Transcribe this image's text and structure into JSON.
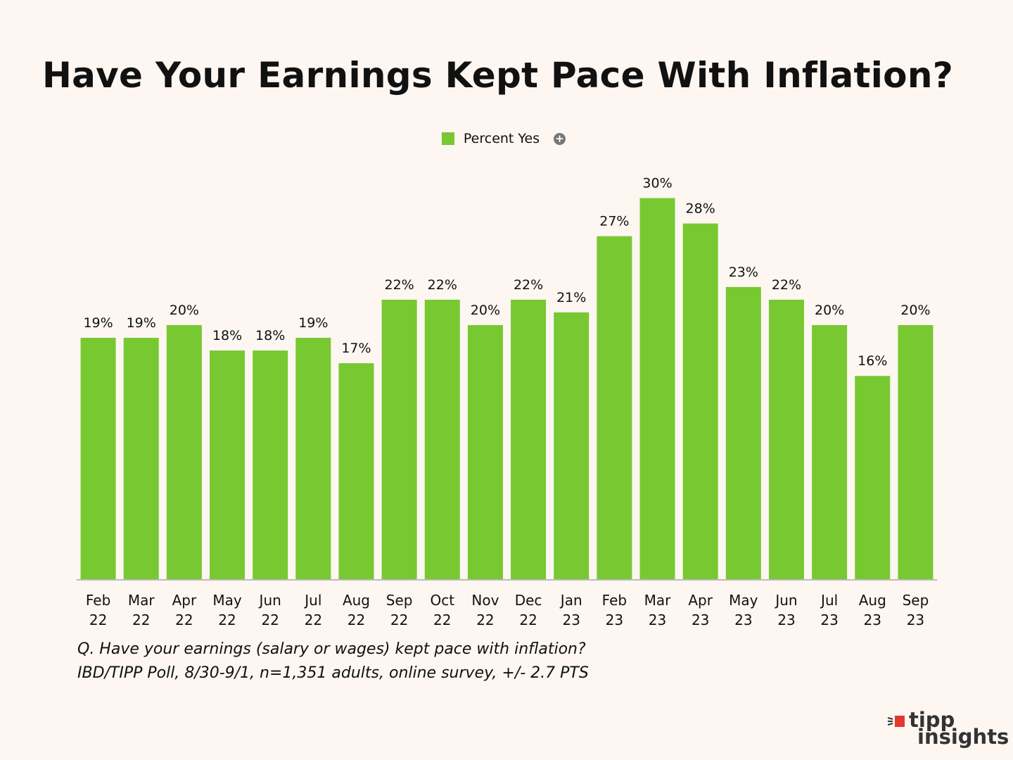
{
  "title": "Have Your Earnings Kept Pace With Inflation?",
  "legend": {
    "label": "Percent Yes",
    "icon": "plus-circle-icon"
  },
  "colors": {
    "bar": "#78c832",
    "axis": "#bbbbbb",
    "background": "#fdf6f1"
  },
  "chart_data": {
    "type": "bar",
    "title": "Have Your Earnings Kept Pace With Inflation?",
    "categories": [
      [
        "Feb",
        "22"
      ],
      [
        "Mar",
        "22"
      ],
      [
        "Apr",
        "22"
      ],
      [
        "May",
        "22"
      ],
      [
        "Jun",
        "22"
      ],
      [
        "Jul",
        "22"
      ],
      [
        "Aug",
        "22"
      ],
      [
        "Sep",
        "22"
      ],
      [
        "Oct",
        "22"
      ],
      [
        "Nov",
        "22"
      ],
      [
        "Dec",
        "22"
      ],
      [
        "Jan",
        "23"
      ],
      [
        "Feb",
        "23"
      ],
      [
        "Mar",
        "23"
      ],
      [
        "Apr",
        "23"
      ],
      [
        "May",
        "23"
      ],
      [
        "Jun",
        "23"
      ],
      [
        "Jul",
        "23"
      ],
      [
        "Aug",
        "23"
      ],
      [
        "Sep",
        "23"
      ]
    ],
    "series": [
      {
        "name": "Percent Yes",
        "values": [
          19,
          19,
          20,
          18,
          18,
          19,
          17,
          22,
          22,
          20,
          22,
          21,
          27,
          30,
          28,
          23,
          22,
          20,
          16,
          20
        ],
        "labels": [
          "19%",
          "19%",
          "20%",
          "18%",
          "18%",
          "19%",
          "17%",
          "22%",
          "22%",
          "20%",
          "22%",
          "21%",
          "27%",
          "30%",
          "28%",
          "23%",
          "22%",
          "20%",
          "16%",
          "20%"
        ]
      }
    ],
    "xlabel": "",
    "ylabel": "",
    "ylim": [
      0,
      30
    ],
    "grid": false,
    "legend_position": "top-center"
  },
  "footnote": {
    "line1": "Q. Have your earnings (salary or wages) kept pace with inflation?",
    "line2": "IBD/TIPP Poll, 8/30-9/1, n=1,351 adults, online survey, +/- 2.7 PTS"
  },
  "logo": {
    "line1": "tipp",
    "line2": "insights"
  }
}
